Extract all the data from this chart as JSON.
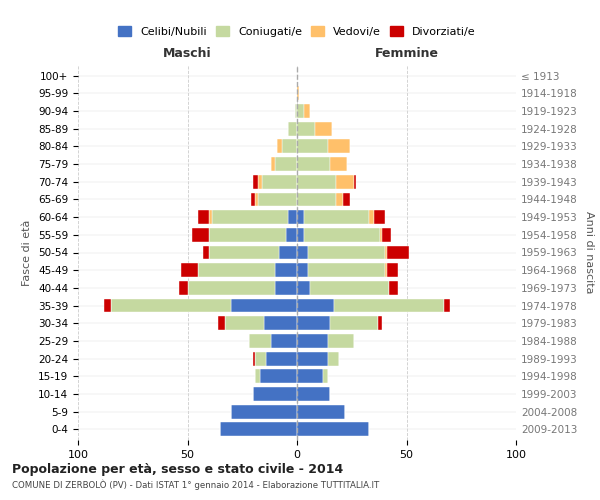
{
  "age_groups": [
    "0-4",
    "5-9",
    "10-14",
    "15-19",
    "20-24",
    "25-29",
    "30-34",
    "35-39",
    "40-44",
    "45-49",
    "50-54",
    "55-59",
    "60-64",
    "65-69",
    "70-74",
    "75-79",
    "80-84",
    "85-89",
    "90-94",
    "95-99",
    "100+"
  ],
  "birth_years": [
    "2009-2013",
    "2004-2008",
    "1999-2003",
    "1994-1998",
    "1989-1993",
    "1984-1988",
    "1979-1983",
    "1974-1978",
    "1969-1973",
    "1964-1968",
    "1959-1963",
    "1954-1958",
    "1949-1953",
    "1944-1948",
    "1939-1943",
    "1934-1938",
    "1929-1933",
    "1924-1928",
    "1919-1923",
    "1914-1918",
    "≤ 1913"
  ],
  "colors": {
    "celibi": "#4472C4",
    "coniugati": "#c5d9a0",
    "vedovi": "#ffc06a",
    "divorziati": "#cc0000",
    "bg": "#ffffff",
    "grid": "#cccccc"
  },
  "maschi": {
    "celibi": [
      35,
      30,
      20,
      17,
      14,
      12,
      15,
      30,
      10,
      10,
      8,
      5,
      4,
      0,
      0,
      0,
      0,
      0,
      0,
      0,
      0
    ],
    "coniugati": [
      0,
      0,
      0,
      2,
      5,
      10,
      18,
      55,
      40,
      35,
      32,
      35,
      35,
      18,
      16,
      10,
      7,
      4,
      1,
      0,
      0
    ],
    "vedovi": [
      0,
      0,
      0,
      0,
      0,
      0,
      0,
      0,
      0,
      0,
      0,
      0,
      1,
      1,
      2,
      2,
      2,
      0,
      0,
      0,
      0
    ],
    "divorziati": [
      0,
      0,
      0,
      0,
      1,
      0,
      3,
      3,
      4,
      8,
      3,
      8,
      5,
      2,
      2,
      0,
      0,
      0,
      0,
      0,
      0
    ]
  },
  "femmine": {
    "celibi": [
      33,
      22,
      15,
      12,
      14,
      14,
      15,
      17,
      6,
      5,
      5,
      3,
      3,
      0,
      0,
      0,
      0,
      0,
      0,
      0,
      0
    ],
    "coniugati": [
      0,
      0,
      0,
      2,
      5,
      12,
      22,
      50,
      36,
      35,
      35,
      35,
      30,
      18,
      18,
      15,
      14,
      8,
      3,
      0,
      0
    ],
    "vedovi": [
      0,
      0,
      0,
      0,
      0,
      0,
      0,
      0,
      0,
      1,
      1,
      1,
      2,
      3,
      8,
      8,
      10,
      8,
      3,
      1,
      0
    ],
    "divorziati": [
      0,
      0,
      0,
      0,
      0,
      0,
      2,
      3,
      4,
      5,
      10,
      4,
      5,
      3,
      1,
      0,
      0,
      0,
      0,
      0,
      0
    ]
  },
  "title": "Popolazione per età, sesso e stato civile - 2014",
  "subtitle": "COMUNE DI ZERBOLÒ (PV) - Dati ISTAT 1° gennaio 2014 - Elaborazione TUTTITALIA.IT",
  "xlabel_left": "Maschi",
  "xlabel_right": "Femmine",
  "ylabel_left": "Fasce di età",
  "ylabel_right": "Anni di nascita",
  "xlim": 100,
  "legend_labels": [
    "Celibi/Nubili",
    "Coniugati/e",
    "Vedovi/e",
    "Divorziati/e"
  ]
}
